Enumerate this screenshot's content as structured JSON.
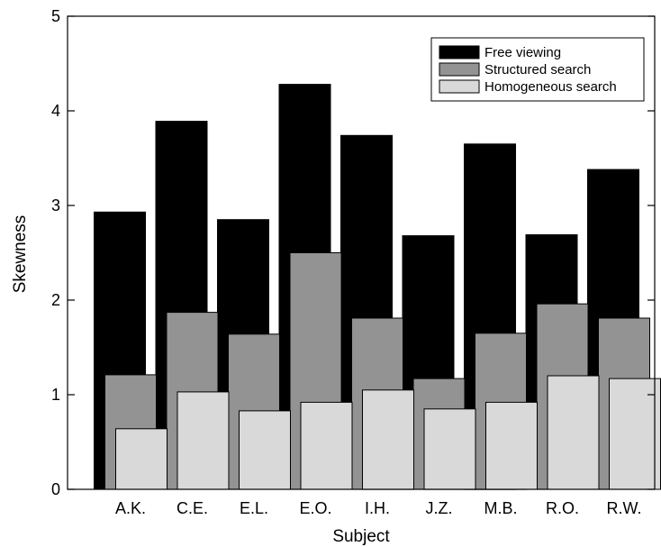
{
  "chart_data": {
    "type": "bar",
    "title": "",
    "xlabel": "Subject",
    "ylabel": "Skewness",
    "categories": [
      "A.K.",
      "C.E.",
      "E.L.",
      "E.O.",
      "I.H.",
      "J.Z.",
      "M.B.",
      "R.O.",
      "R.W."
    ],
    "series": [
      {
        "name": "Free viewing",
        "values": [
          2.93,
          3.89,
          2.85,
          4.28,
          3.74,
          2.68,
          3.65,
          2.69,
          3.38
        ],
        "color": "#000000"
      },
      {
        "name": "Structured search",
        "values": [
          1.21,
          1.87,
          1.64,
          2.5,
          1.81,
          1.17,
          1.65,
          1.96,
          1.81
        ],
        "color": "#939393"
      },
      {
        "name": "Homogeneous search",
        "values": [
          0.64,
          1.03,
          0.83,
          0.92,
          1.05,
          0.85,
          0.92,
          1.2,
          1.17
        ],
        "color": "#d9d9d9"
      }
    ],
    "ylim": [
      0,
      5
    ],
    "yticks": [
      0,
      1,
      2,
      3,
      4,
      5
    ],
    "grid": false,
    "legend_position": "top-right",
    "bar_style": "overlapping, staggered"
  }
}
